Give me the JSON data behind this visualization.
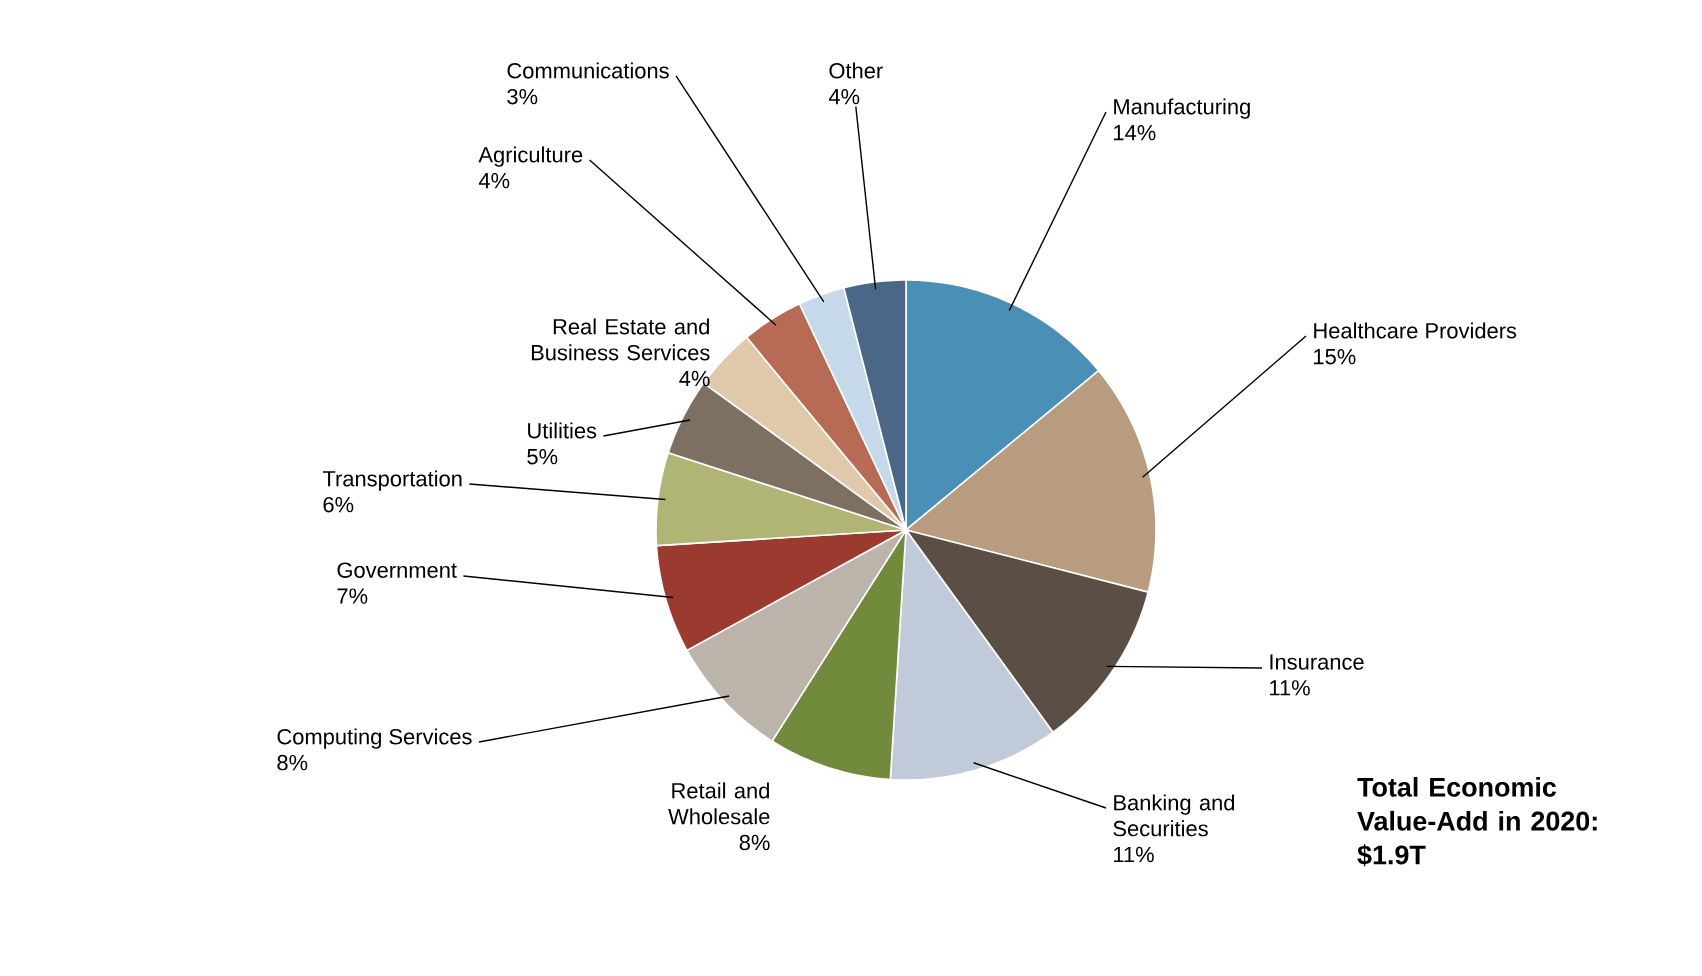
{
  "chart_data": {
    "type": "pie",
    "categories": [
      "Manufacturing",
      "Healthcare Providers",
      "Insurance",
      "Banking and Securities",
      "Retail and Wholesale",
      "Computing Services",
      "Government",
      "Transportation",
      "Utilities",
      "Real Estate and Business Services",
      "Agriculture",
      "Communications",
      "Other"
    ],
    "values": [
      14,
      15,
      11,
      11,
      8,
      8,
      7,
      6,
      5,
      4,
      4,
      3,
      4
    ],
    "value_labels": [
      "14%",
      "15%",
      "11%",
      "11%",
      "8%",
      "8%",
      "7%",
      "6%",
      "5%",
      "4%",
      "4%",
      "3%",
      "4%"
    ],
    "colors": [
      "#4a8fb5",
      "#b89c80",
      "#5a4e45",
      "#c0cad9",
      "#728a3c",
      "#bcb3aa",
      "#9b3a2e",
      "#b0b576",
      "#7d7063",
      "#dfc9aa",
      "#b86b54",
      "#c6d9ea",
      "#4a6787"
    ],
    "annotations": [
      "Total Economic Value-Add in 2020: $1.9T"
    ]
  }
}
